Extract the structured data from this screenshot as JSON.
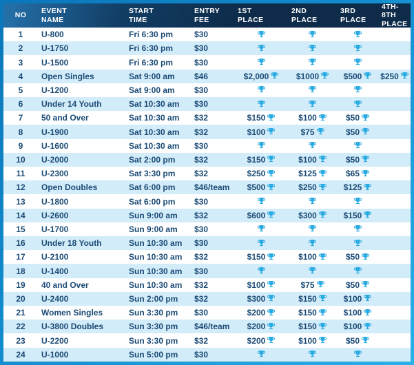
{
  "table": {
    "columns": [
      {
        "key": "no",
        "label1": "NO",
        "label2": ""
      },
      {
        "key": "event",
        "label1": "EVENT",
        "label2": "NAME"
      },
      {
        "key": "time",
        "label1": "START",
        "label2": "TIME"
      },
      {
        "key": "fee",
        "label1": "ENTRY",
        "label2": "FEE"
      },
      {
        "key": "p1",
        "label1": "1ST",
        "label2": "PLACE"
      },
      {
        "key": "p2",
        "label1": "2ND",
        "label2": "PLACE"
      },
      {
        "key": "p3",
        "label1": "3RD",
        "label2": "PLACE"
      },
      {
        "key": "p4",
        "label1": "4TH-8TH",
        "label2": "PLACE"
      }
    ],
    "rows": [
      {
        "no": "1",
        "event": "U-800",
        "time": "Fri 6:30 pm",
        "fee": "$30",
        "p1": "",
        "p2": "",
        "p3": "",
        "p4": null
      },
      {
        "no": "2",
        "event": "U-1750",
        "time": "Fri 6:30 pm",
        "fee": "$30",
        "p1": "",
        "p2": "",
        "p3": "",
        "p4": null
      },
      {
        "no": "3",
        "event": "U-1500",
        "time": "Fri 6:30 pm",
        "fee": "$30",
        "p1": "",
        "p2": "",
        "p3": "",
        "p4": null
      },
      {
        "no": "4",
        "event": "Open Singles",
        "time": "Sat 9:00 am",
        "fee": "$46",
        "p1": "$2,000",
        "p2": "$1000",
        "p3": "$500",
        "p4": "$250"
      },
      {
        "no": "5",
        "event": "U-1200",
        "time": "Sat 9:00 am",
        "fee": "$30",
        "p1": "",
        "p2": "",
        "p3": "",
        "p4": null
      },
      {
        "no": "6",
        "event": "Under 14 Youth",
        "time": "Sat 10:30 am",
        "fee": "$30",
        "p1": "",
        "p2": "",
        "p3": "",
        "p4": null
      },
      {
        "no": "7",
        "event": "50 and Over",
        "time": "Sat 10:30 am",
        "fee": "$32",
        "p1": "$150",
        "p2": "$100",
        "p3": "$50",
        "p4": null
      },
      {
        "no": "8",
        "event": "U-1900",
        "time": "Sat 10:30 am",
        "fee": "$32",
        "p1": "$100",
        "p2": "$75",
        "p3": "$50",
        "p4": null
      },
      {
        "no": "9",
        "event": "U-1600",
        "time": "Sat 10:30 am",
        "fee": "$30",
        "p1": "",
        "p2": "",
        "p3": "",
        "p4": null
      },
      {
        "no": "10",
        "event": "U-2000",
        "time": "Sat 2:00 pm",
        "fee": "$32",
        "p1": "$150",
        "p2": "$100",
        "p3": "$50",
        "p4": null
      },
      {
        "no": "11",
        "event": "U-2300",
        "time": "Sat 3:30 pm",
        "fee": "$32",
        "p1": "$250",
        "p2": "$125",
        "p3": "$65",
        "p4": null
      },
      {
        "no": "12",
        "event": "Open Doubles",
        "time": "Sat 6:00 pm",
        "fee": "$46/team",
        "p1": "$500",
        "p2": "$250",
        "p3": "$125",
        "p4": null
      },
      {
        "no": "13",
        "event": "U-1800",
        "time": "Sat 6:00 pm",
        "fee": "$30",
        "p1": "",
        "p2": "",
        "p3": "",
        "p4": null
      },
      {
        "no": "14",
        "event": "U-2600",
        "time": "Sun 9:00 am",
        "fee": "$32",
        "p1": "$600",
        "p2": "$300",
        "p3": "$150",
        "p4": null
      },
      {
        "no": "15",
        "event": "U-1700",
        "time": "Sun 9:00 am",
        "fee": "$30",
        "p1": "",
        "p2": "",
        "p3": "",
        "p4": null
      },
      {
        "no": "16",
        "event": "Under 18 Youth",
        "time": "Sun 10:30 am",
        "fee": "$30",
        "p1": "",
        "p2": "",
        "p3": "",
        "p4": null
      },
      {
        "no": "17",
        "event": "U-2100",
        "time": "Sun 10:30 am",
        "fee": "$32",
        "p1": "$150",
        "p2": "$100",
        "p3": "$50",
        "p4": null
      },
      {
        "no": "18",
        "event": "U-1400",
        "time": "Sun 10:30 am",
        "fee": "$30",
        "p1": "",
        "p2": "",
        "p3": "",
        "p4": null
      },
      {
        "no": "19",
        "event": "40 and Over",
        "time": "Sun 10:30 am",
        "fee": "$32",
        "p1": "$100",
        "p2": "$75",
        "p3": "$50",
        "p4": null
      },
      {
        "no": "20",
        "event": "U-2400",
        "time": "Sun 2:00 pm",
        "fee": "$32",
        "p1": "$300",
        "p2": "$150",
        "p3": "$100",
        "p4": null
      },
      {
        "no": "21",
        "event": "Women Singles",
        "time": "Sun 3:30 pm",
        "fee": "$30",
        "p1": "$200",
        "p2": "$150",
        "p3": "$100",
        "p4": null
      },
      {
        "no": "22",
        "event": "U-3800 Doubles",
        "time": "Sun 3:30 pm",
        "fee": "$46/team",
        "p1": "$200",
        "p2": "$150",
        "p3": "$100",
        "p4": null
      },
      {
        "no": "23",
        "event": "U-2200",
        "time": "Sun 3:30 pm",
        "fee": "$32",
        "p1": "$200",
        "p2": "$100",
        "p3": "$50",
        "p4": null
      },
      {
        "no": "24",
        "event": "U-1000",
        "time": "Sun 5:00 pm",
        "fee": "$30",
        "p1": "",
        "p2": "",
        "p3": "",
        "p4": null
      }
    ]
  },
  "icons": {
    "prize": "trophy-icon"
  },
  "colors": {
    "accent_cyan": "#29abe2",
    "header_navy": "#0e2b4a",
    "header_steel_blue": "#2571ab",
    "row_stripe": "#d3ecf9",
    "body_text": "#1a4a75",
    "border_gradient_start": "#0b76ba",
    "border_gradient_end": "#2bb0e8"
  }
}
